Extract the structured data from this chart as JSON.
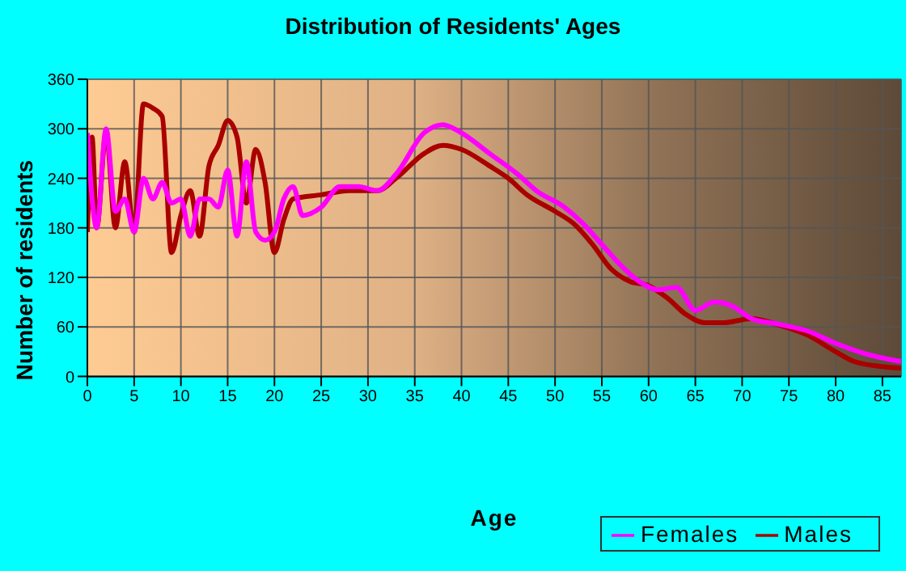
{
  "chart_data": {
    "type": "line",
    "title": "Distribution of Residents' Ages",
    "xlabel": "Age",
    "ylabel": "Number of residents",
    "xlim": [
      0,
      87
    ],
    "xticks": [
      0,
      5,
      10,
      15,
      20,
      25,
      30,
      35,
      40,
      45,
      50,
      55,
      60,
      65,
      70,
      75,
      80,
      85
    ],
    "ylim": [
      0,
      360
    ],
    "yticks": [
      0,
      60,
      120,
      180,
      240,
      300,
      360
    ],
    "grid": true,
    "legend": "bottom right",
    "marker": "none",
    "line_style": "solid",
    "series": [
      {
        "name": "Males",
        "color": "#aa0000",
        "x": [
          0,
          0.5,
          1,
          2,
          3,
          4,
          5,
          6,
          7,
          8,
          9,
          10,
          11,
          12,
          13,
          14,
          15,
          16,
          17,
          18,
          19,
          20,
          21,
          22,
          25,
          28,
          31,
          33,
          36,
          38,
          40,
          43,
          45,
          47,
          50,
          52,
          54,
          56,
          58,
          60,
          62,
          64,
          66,
          68,
          71,
          74,
          77,
          80,
          82,
          85,
          87
        ],
        "values": [
          175,
          290,
          180,
          295,
          180,
          260,
          175,
          330,
          325,
          315,
          150,
          195,
          225,
          170,
          255,
          280,
          310,
          290,
          210,
          275,
          235,
          150,
          190,
          215,
          220,
          225,
          225,
          240,
          270,
          280,
          275,
          255,
          240,
          220,
          200,
          185,
          160,
          130,
          115,
          110,
          95,
          75,
          65,
          65,
          70,
          62,
          50,
          30,
          18,
          12,
          10
        ]
      },
      {
        "name": "Females",
        "color": "#ff00ff",
        "x": [
          0,
          1,
          2,
          3,
          4,
          5,
          6,
          7,
          8,
          9,
          10,
          11,
          12,
          13,
          14,
          15,
          16,
          17,
          18,
          19,
          20,
          21,
          22,
          23,
          25,
          27,
          29,
          31,
          33,
          36,
          38,
          40,
          43,
          46,
          48,
          51,
          53,
          55,
          57,
          59,
          61,
          63,
          65,
          67,
          69,
          71,
          74,
          77,
          80,
          83,
          87
        ],
        "values": [
          295,
          180,
          300,
          200,
          215,
          175,
          240,
          215,
          235,
          210,
          215,
          170,
          215,
          215,
          205,
          250,
          170,
          260,
          175,
          165,
          175,
          215,
          230,
          195,
          205,
          230,
          230,
          225,
          245,
          295,
          305,
          295,
          270,
          245,
          225,
          205,
          185,
          160,
          135,
          115,
          105,
          108,
          80,
          90,
          85,
          70,
          63,
          55,
          40,
          28,
          18
        ]
      }
    ]
  }
}
